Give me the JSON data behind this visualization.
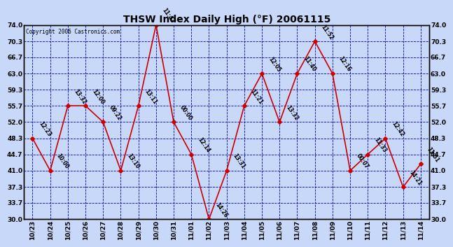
{
  "title": "THSW Index Daily High (°F) 20061115",
  "copyright": "Copyright 2006 Castronics.com",
  "background_color": "#c8d8f8",
  "plot_bg_color": "#c8d8f8",
  "line_color": "#cc0000",
  "marker_color": "#cc0000",
  "grid_color": "#0000cc",
  "x_labels": [
    "10/23",
    "10/24",
    "10/25",
    "10/26",
    "10/27",
    "10/28",
    "10/29",
    "10/30",
    "10/31",
    "11/01",
    "11/02",
    "11/03",
    "11/04",
    "11/05",
    "11/06",
    "11/07",
    "11/08",
    "11/09",
    "11/10",
    "11/11",
    "11/12",
    "11/13",
    "11/14"
  ],
  "y_values": [
    48.3,
    41.0,
    55.7,
    55.7,
    52.0,
    41.0,
    55.7,
    74.0,
    52.0,
    44.7,
    30.0,
    41.0,
    55.7,
    63.0,
    52.0,
    63.0,
    70.3,
    63.0,
    41.0,
    44.7,
    48.3,
    37.3,
    42.5
  ],
  "point_labels": [
    "12:23",
    "10:00",
    "13:32",
    "12:00",
    "09:22",
    "13:10",
    "13:11",
    "11:47",
    "00:00",
    "12:14",
    "14:26",
    "13:31",
    "11:21",
    "12:05",
    "13:32",
    "11:40",
    "11:52",
    "12:16",
    "00:07",
    "11:33",
    "12:42",
    "14:21",
    "11:51"
  ],
  "ylim_min": 30.0,
  "ylim_max": 74.0,
  "yticks": [
    30.0,
    33.7,
    37.3,
    41.0,
    44.7,
    48.3,
    52.0,
    55.7,
    59.3,
    63.0,
    66.7,
    70.3,
    74.0
  ]
}
